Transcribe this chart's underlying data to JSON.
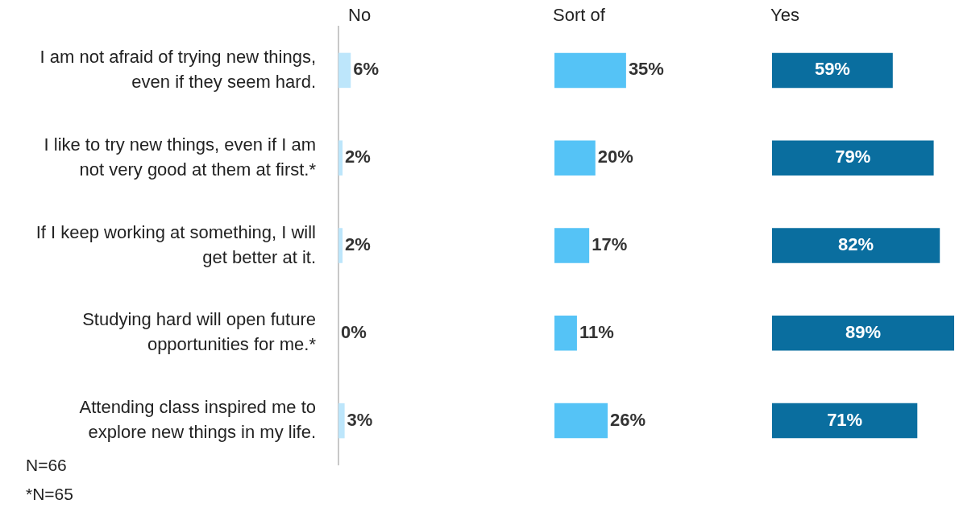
{
  "chart_data": [
    {
      "type": "bar",
      "orientation": "horizontal",
      "title": "No",
      "categories": [
        "I am not afraid of trying new things, even if they seem hard.",
        "I like to try new things, even if I am not very good at them at first.*",
        "If I keep working at something, I will get better at it.",
        "Studying hard will open future opportunities for me.*",
        "Attending class inspired me to explore new things in my life."
      ],
      "values": [
        6,
        2,
        2,
        0,
        3
      ],
      "value_labels": [
        "6%",
        "2%",
        "2%",
        "0%",
        "3%"
      ],
      "color": "#bde6fb",
      "tick_labels": "y",
      "annotations": [
        "N=66",
        "*N=65"
      ]
    },
    {
      "type": "bar",
      "orientation": "horizontal",
      "title": "Sort of",
      "categories": [
        null,
        null,
        null,
        null,
        null
      ],
      "values": [
        35,
        20,
        17,
        11,
        26
      ],
      "value_labels": [
        "35%",
        "20%",
        "17%",
        "11%",
        "26%"
      ],
      "color": "#55c3f6",
      "tick_labels": false
    },
    {
      "type": "bar",
      "orientation": "horizontal",
      "title": "Yes",
      "categories": [
        null,
        null,
        null,
        null,
        null
      ],
      "values": [
        59,
        79,
        82,
        89,
        71
      ],
      "value_labels": [
        "59%",
        "79%",
        "82%",
        "89%",
        "71%"
      ],
      "color": "#0a6e9f",
      "tick_labels": false
    }
  ]
}
